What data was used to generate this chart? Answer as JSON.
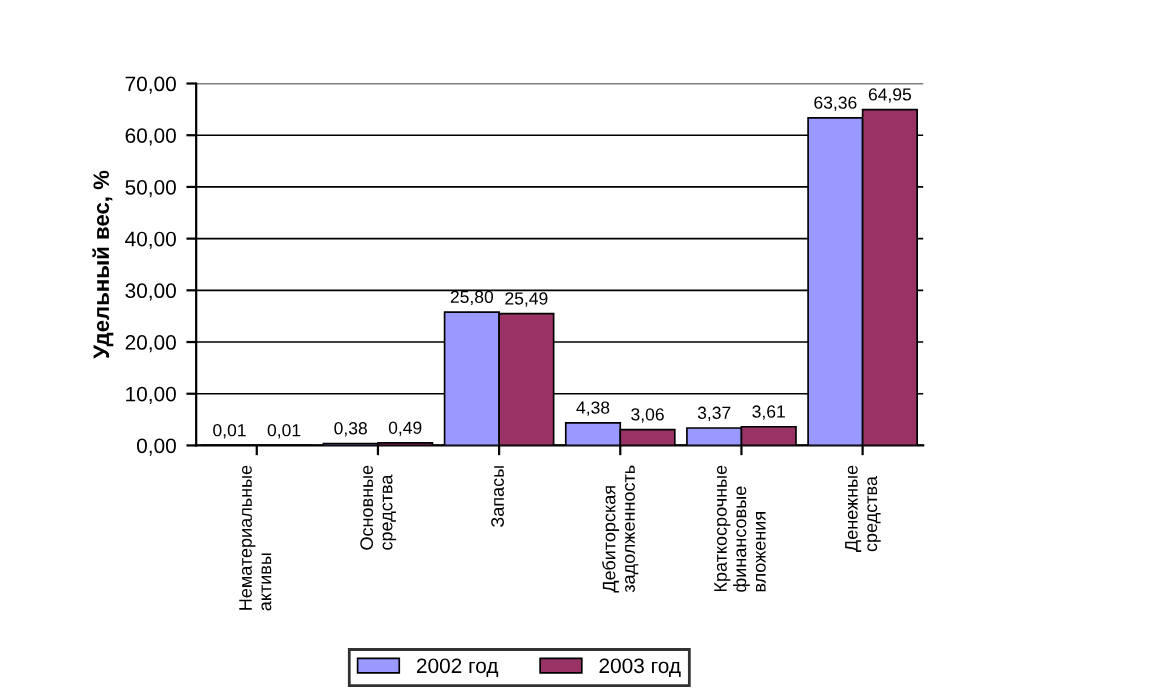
{
  "chart_data": {
    "type": "bar",
    "ylabel": "Удельный вес, %",
    "categories": [
      "Нематериальные\nактивы",
      "Основные\nсредства",
      "Запасы",
      "Дебиторская\nзадолженность",
      "Краткосрочные\nфинансовые\nвложения",
      "Денежные\nсредства"
    ],
    "series": [
      {
        "name": "2002 год",
        "color": "#9999ff",
        "values": [
          0.01,
          0.38,
          25.8,
          4.38,
          3.37,
          63.36
        ],
        "value_labels": [
          "0,01",
          "0,38",
          "25,80",
          "4,38",
          "3,37",
          "63,36"
        ]
      },
      {
        "name": "2003 год",
        "color": "#993366",
        "values": [
          0.01,
          0.49,
          25.49,
          3.06,
          3.61,
          64.95
        ],
        "value_labels": [
          "0,01",
          "0,49",
          "25,49",
          "3,06",
          "3,61",
          "64,95"
        ]
      }
    ],
    "ylim": [
      0,
      70
    ],
    "yticks": [
      {
        "value": 0,
        "label": "0,00"
      },
      {
        "value": 10,
        "label": "10,00"
      },
      {
        "value": 20,
        "label": "20,00"
      },
      {
        "value": 30,
        "label": "30,00"
      },
      {
        "value": 40,
        "label": "40,00"
      },
      {
        "value": 50,
        "label": "50,00"
      },
      {
        "value": 60,
        "label": "60,00"
      },
      {
        "value": 70,
        "label": "70,00"
      }
    ],
    "grid": "y",
    "legend": "bottom"
  }
}
